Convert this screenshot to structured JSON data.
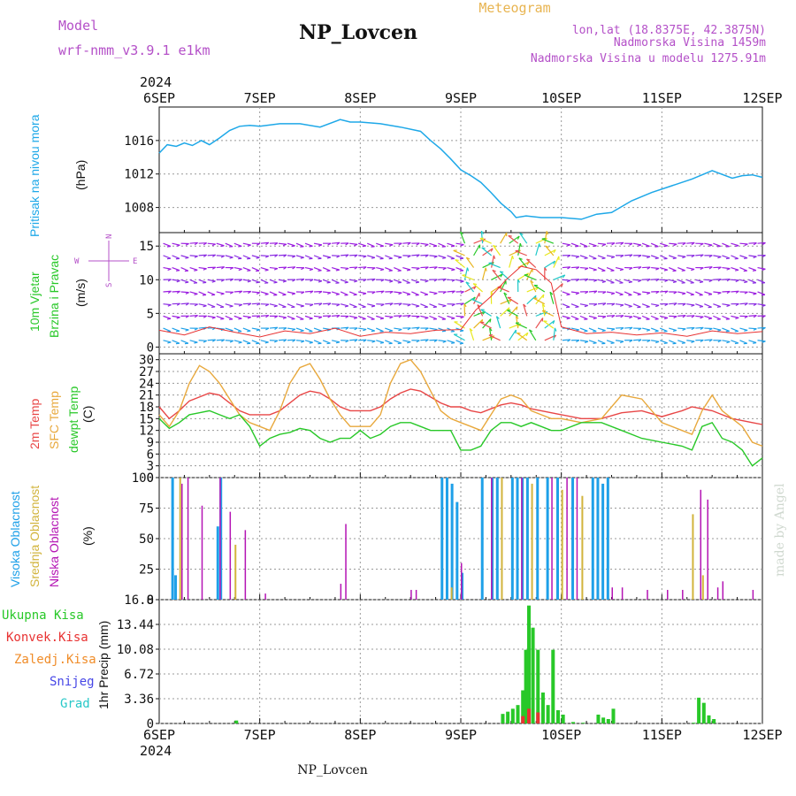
{
  "header": {
    "model_label": "Model",
    "model_name": "wrf-nmm_v3.9.1 e1km",
    "station": "NP_Lovcen",
    "product": "Meteogram",
    "coords": "lon,lat (18.8375E, 42.3875N)",
    "elevation": "Nadmorska Visina 1459m",
    "model_elevation": "Nadmorska Visina u modelu 1275.91m",
    "credit": "made by Angel",
    "footer_station": "NP_Lovcen"
  },
  "time_axis": {
    "year": "2024",
    "labels": [
      "6SEP",
      "7SEP",
      "8SEP",
      "9SEP",
      "10SEP",
      "11SEP",
      "12SEP"
    ]
  },
  "panels": {
    "pressure": {
      "side_title": "Pritisak na nivou mora",
      "unit": "(hPa)"
    },
    "wind": {
      "side_title_1": "10m Vjetar",
      "side_title_2": "Brzina i Pravac",
      "unit": "(m/s)",
      "compass": {
        "n": "N",
        "s": "S",
        "e": "E",
        "w": "W"
      }
    },
    "temp": {
      "label_2m": "2m Temp",
      "label_sfc": "SFC Temp",
      "label_dew": "dewpt Temp",
      "unit": "(C)"
    },
    "cloud": {
      "label_high": "Visoka Oblacnost",
      "label_mid": "Srednja Oblacnost",
      "label_low": "Niska Oblacnost",
      "unit": "(%)"
    },
    "precip": {
      "label_total": "Ukupna Kisa",
      "label_conv": "Konvek.Kisa",
      "label_frz": "Zaledj.Kisa",
      "label_snow": "Snijeg",
      "label_hail": "Grad",
      "unit": "1hr Precip (mm)"
    }
  },
  "colors": {
    "pressure": "#1ea8e8",
    "temp2m": "#e84646",
    "sfc": "#e8a83c",
    "dew": "#28c828",
    "high": "#1ea0e8",
    "mid": "#d2b43c",
    "low": "#b414b4",
    "total": "#28c828",
    "conv": "#e83232",
    "frz": "#f08c28",
    "snow": "#4646e6",
    "hail": "#28c8c8",
    "title_purple": "#b450c8",
    "product_orange": "#e8b450"
  },
  "chart_data": [
    {
      "type": "line",
      "name": "pressure",
      "ylim": [
        1005,
        1020
      ],
      "yticks": [
        1008,
        1012,
        1016
      ],
      "x_days": [
        0,
        0.08,
        0.17,
        0.25,
        0.33,
        0.42,
        0.5,
        0.6,
        0.7,
        0.8,
        0.9,
        1.0,
        1.2,
        1.4,
        1.6,
        1.8,
        1.9,
        2.0,
        2.2,
        2.4,
        2.6,
        2.7,
        2.8,
        2.9,
        3.0,
        3.1,
        3.2,
        3.3,
        3.4,
        3.5,
        3.55,
        3.65,
        3.8,
        4.0,
        4.2,
        4.35,
        4.5,
        4.7,
        4.9,
        5.1,
        5.3,
        5.5,
        5.7,
        5.8,
        5.9,
        6.0
      ],
      "values": [
        1014.5,
        1015.5,
        1015.3,
        1015.7,
        1015.4,
        1016.0,
        1015.5,
        1016.3,
        1017.2,
        1017.7,
        1017.8,
        1017.7,
        1018.0,
        1018.0,
        1017.6,
        1018.5,
        1018.2,
        1018.2,
        1018.0,
        1017.6,
        1017.1,
        1016.0,
        1015.0,
        1013.8,
        1012.5,
        1011.8,
        1011.0,
        1009.8,
        1008.5,
        1007.5,
        1006.8,
        1007.0,
        1006.8,
        1006.8,
        1006.6,
        1007.2,
        1007.4,
        1008.8,
        1009.8,
        1010.6,
        1011.4,
        1012.4,
        1011.5,
        1011.8,
        1011.9,
        1011.6
      ]
    },
    {
      "type": "scatter",
      "name": "wind",
      "ylim": [
        -1,
        17
      ],
      "yticks": [
        0,
        5,
        10,
        15
      ],
      "x_days": [
        0,
        0.25,
        0.5,
        0.75,
        1.0,
        1.25,
        1.5,
        1.75,
        2.0,
        2.25,
        2.5,
        2.75,
        3.0,
        3.15,
        3.3,
        3.45,
        3.6,
        3.75,
        3.9,
        4.0,
        4.25,
        4.5,
        4.75,
        5.0,
        5.25,
        5.5,
        5.75,
        6.0
      ],
      "speed": [
        2.5,
        1.8,
        3.0,
        2.2,
        1.5,
        2.4,
        2.0,
        2.8,
        1.6,
        2.2,
        2.0,
        2.5,
        2.6,
        5.5,
        7.5,
        10.0,
        12.0,
        11.5,
        9.5,
        3.0,
        2.0,
        2.2,
        1.8,
        2.1,
        1.6,
        2.4,
        2.0,
        2.3
      ]
    },
    {
      "type": "line",
      "name": "temperature",
      "ylim": [
        0,
        31.5
      ],
      "yticks": [
        0,
        3,
        6,
        9,
        12,
        15,
        18,
        21,
        24,
        27,
        30
      ],
      "x_days": [
        0,
        0.1,
        0.2,
        0.3,
        0.4,
        0.5,
        0.6,
        0.7,
        0.8,
        0.9,
        1.0,
        1.1,
        1.2,
        1.3,
        1.4,
        1.5,
        1.6,
        1.7,
        1.8,
        1.9,
        2.0,
        2.1,
        2.2,
        2.3,
        2.4,
        2.5,
        2.6,
        2.7,
        2.8,
        2.9,
        3.0,
        3.1,
        3.2,
        3.3,
        3.4,
        3.5,
        3.6,
        3.7,
        3.8,
        3.9,
        4.0,
        4.2,
        4.4,
        4.6,
        4.8,
        5.0,
        5.2,
        5.3,
        5.4,
        5.5,
        5.6,
        5.7,
        5.8,
        5.9,
        6.0
      ],
      "series": [
        {
          "name": "2m Temp",
          "values": [
            18,
            15,
            17,
            19.5,
            20.5,
            21.5,
            21,
            19,
            17,
            16,
            16,
            16,
            17,
            19,
            21,
            22,
            21.5,
            20,
            18,
            17,
            17,
            17,
            18,
            20,
            21.5,
            22.5,
            22,
            20.5,
            19,
            18,
            18,
            17,
            16.5,
            17.5,
            18.5,
            19,
            18.5,
            17.5,
            17,
            16.5,
            16,
            15,
            15,
            16.5,
            17,
            15.5,
            17,
            18,
            17.5,
            17,
            16,
            15,
            14.5,
            14,
            13.5
          ]
        },
        {
          "name": "SFC Temp",
          "values": [
            16,
            13,
            17,
            24,
            28.5,
            27,
            24,
            20,
            16,
            14,
            13,
            12,
            17,
            24,
            28,
            29,
            25,
            20,
            16,
            13,
            13,
            13,
            16,
            24,
            29,
            30,
            27,
            22,
            17,
            15,
            14,
            13,
            12,
            16,
            20,
            21,
            20,
            17,
            16,
            15,
            15,
            14,
            15,
            21,
            20,
            14,
            12,
            11,
            17,
            21,
            17,
            15,
            13,
            9,
            8
          ]
        },
        {
          "name": "dewpt Temp",
          "values": [
            15,
            12.5,
            14,
            16,
            16.5,
            17,
            16,
            15,
            16,
            13,
            8,
            10,
            11,
            11.5,
            12.5,
            12,
            10,
            9,
            10,
            10,
            12,
            10,
            11,
            13,
            14,
            14,
            13,
            12,
            12,
            12,
            7,
            7,
            8,
            12,
            14,
            14,
            13,
            14,
            13,
            12,
            12,
            14,
            14,
            12,
            10,
            9,
            8,
            7,
            13,
            14,
            10,
            9,
            7,
            3,
            5
          ]
        }
      ]
    },
    {
      "type": "bar",
      "name": "cloud_cover",
      "ylim": [
        0,
        100
      ],
      "yticks": [
        0,
        25,
        50,
        75,
        100
      ],
      "series": [
        {
          "name": "Visoka Oblacnost",
          "x_days": [
            0.12,
            0.15,
            0.57,
            0.6,
            2.8,
            2.85,
            2.9,
            2.95,
            3.0,
            3.2,
            3.3,
            3.35,
            3.5,
            3.55,
            3.6,
            3.65,
            3.75,
            3.85,
            3.95,
            4.1,
            4.3,
            4.35,
            4.4,
            4.45
          ],
          "values": [
            100,
            20,
            60,
            100,
            100,
            100,
            95,
            80,
            22,
            100,
            100,
            100,
            100,
            100,
            100,
            100,
            100,
            100,
            100,
            100,
            100,
            100,
            95,
            100
          ]
        },
        {
          "name": "Srednja Oblacnost",
          "x_days": [
            0.2,
            0.75,
            2.9,
            3.4,
            3.7,
            4.0,
            4.2,
            5.3,
            5.4
          ],
          "values": [
            100,
            45,
            10,
            100,
            95,
            90,
            85,
            70,
            20
          ]
        },
        {
          "name": "Niska Oblacnost",
          "x_days": [
            0.22,
            0.28,
            0.42,
            0.6,
            0.7,
            0.85,
            1.05,
            1.8,
            1.85,
            2.5,
            2.55,
            3.0,
            3.3,
            3.6,
            3.9,
            4.05,
            4.15,
            4.5,
            4.6,
            4.85,
            5.05,
            5.2,
            5.38,
            5.45,
            5.55,
            5.6,
            5.9
          ],
          "values": [
            95,
            100,
            77,
            100,
            72,
            57,
            5,
            13,
            62,
            8,
            8,
            30,
            100,
            100,
            100,
            100,
            100,
            10,
            10,
            8,
            8,
            8,
            90,
            82,
            10,
            15,
            8
          ]
        }
      ]
    },
    {
      "type": "bar",
      "name": "precipitation",
      "ylim": [
        0,
        16.8
      ],
      "yticks": [
        0,
        3.36,
        6.72,
        10.08,
        13.44,
        16.8
      ],
      "series": [
        {
          "name": "Ukupna Kisa",
          "x_days": [
            0.75,
            3.4,
            3.45,
            3.5,
            3.55,
            3.6,
            3.63,
            3.66,
            3.7,
            3.75,
            3.8,
            3.85,
            3.9,
            3.95,
            4.0,
            4.1,
            4.2,
            4.35,
            4.4,
            4.45,
            4.5,
            5.3,
            5.35,
            5.4,
            5.45,
            5.5
          ],
          "values": [
            0.4,
            1.3,
            1.6,
            2.0,
            2.5,
            4.5,
            10.0,
            16.0,
            13.0,
            10.0,
            4.2,
            2.5,
            10.0,
            1.8,
            1.2,
            0.2,
            0.1,
            1.2,
            0.8,
            0.6,
            2.0,
            0.1,
            3.5,
            2.8,
            1.1,
            0.6
          ]
        },
        {
          "name": "Konvek.Kisa",
          "x_days": [
            3.6,
            3.66,
            3.75
          ],
          "values": [
            1.0,
            2.0,
            1.5
          ]
        }
      ]
    }
  ]
}
